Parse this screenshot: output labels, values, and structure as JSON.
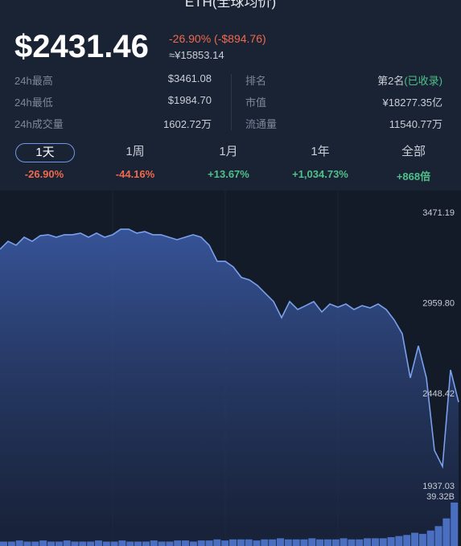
{
  "header": {
    "title": "ETH(全球均价)"
  },
  "quote": {
    "price": "$2431.46",
    "change_pct": "-26.90%",
    "change_abs": "(-$894.76)",
    "cny": "≈¥15853.14"
  },
  "stats_left": [
    {
      "label": "24h最高",
      "value": "$3461.08"
    },
    {
      "label": "24h最低",
      "value": "$1984.70"
    },
    {
      "label": "24h成交量",
      "value": "1602.72万"
    }
  ],
  "stats_right": [
    {
      "label": "排名",
      "value": "第2名",
      "note": "(已收录)"
    },
    {
      "label": "市值",
      "value": "¥18277.35亿"
    },
    {
      "label": "流通量",
      "value": "11540.77万"
    }
  ],
  "periods": [
    {
      "label": "1天",
      "change": "-26.90%"
    },
    {
      "label": "1周",
      "change": "-44.16%"
    },
    {
      "label": "1月",
      "change": "+13.67%"
    },
    {
      "label": "1年",
      "change": "+1,034.73%"
    },
    {
      "label": "全部",
      "change": "+868倍"
    }
  ],
  "chart_data": {
    "type": "line",
    "color": "#7aa0ec",
    "values": [
      3267,
      3312,
      3290,
      3335,
      3312,
      3344,
      3349,
      3335,
      3349,
      3349,
      3358,
      3335,
      3358,
      3335,
      3349,
      3380,
      3380,
      3358,
      3367,
      3349,
      3349,
      3335,
      3321,
      3335,
      3349,
      3335,
      3290,
      3199,
      3199,
      3167,
      3108,
      3094,
      3063,
      3017,
      2972,
      2881,
      2972,
      2927,
      2949,
      2972,
      2913,
      2958,
      2940,
      2958,
      2927,
      2949,
      2936,
      2958,
      2927,
      2868,
      2790,
      2541,
      2722,
      2541,
      2132,
      2041,
      2586,
      2404
    ],
    "ylim": [
      1937.03,
      3471.19
    ],
    "yticks": [
      3471.19,
      {
        "value": 2959.8,
        "label": "2959.80"
      },
      2448.42,
      1937.03
    ],
    "volume": {
      "color": "#4a6fc0",
      "ylim": [
        0,
        39.32
      ],
      "yticks": [
        {
          "value": 39.32,
          "label": "39.32B"
        }
      ],
      "values": [
        4,
        4,
        5,
        4,
        4,
        5,
        4,
        4,
        5,
        4,
        4,
        4,
        5,
        4,
        4,
        5,
        4,
        4,
        4,
        5,
        4,
        4,
        5,
        5,
        4,
        5,
        5,
        6,
        5,
        6,
        6,
        6,
        5,
        6,
        6,
        7,
        6,
        6,
        6,
        7,
        6,
        6,
        6,
        7,
        6,
        6,
        7,
        7,
        7,
        8,
        9,
        10,
        12,
        11,
        14,
        18,
        25,
        39.32
      ]
    }
  }
}
